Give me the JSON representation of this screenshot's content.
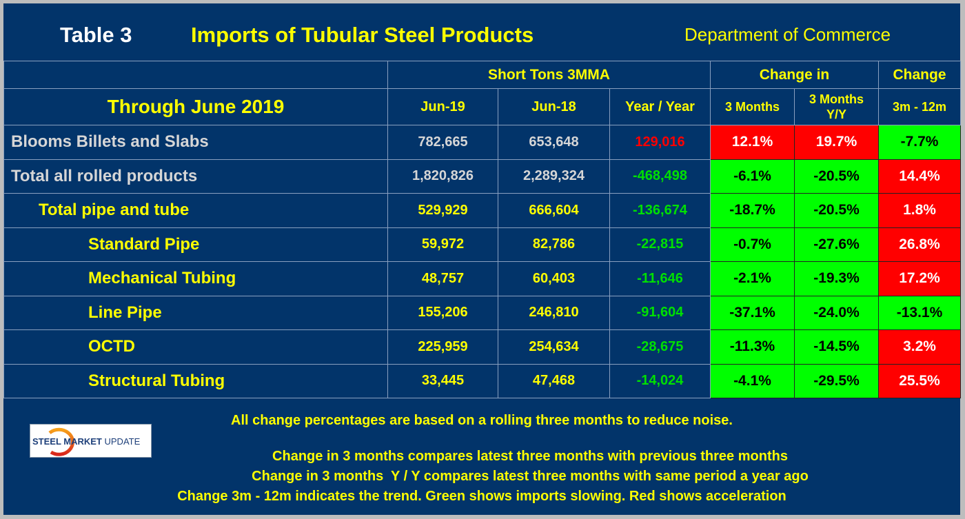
{
  "header": {
    "table_number": "Table 3",
    "title": "Imports of Tubular Steel Products",
    "source": "Department of Commerce"
  },
  "columns": {
    "period": "Through June 2019",
    "group1": "Short Tons 3MMA",
    "group2": "Change in",
    "group3": "Change",
    "c1": "Jun-19",
    "c2": "Jun-18",
    "c3": "Year / Year",
    "c4": "3 Months",
    "c5a": "3 Months",
    "c5b": "Y/Y",
    "c6": "3m - 12m"
  },
  "rows": [
    {
      "label": "Blooms Billets and Slabs",
      "jun19": "782,665",
      "jun18": "653,648",
      "yoy": "129,016",
      "m3": "12.1%",
      "m3yy": "19.7%",
      "trend": "-7.7%"
    },
    {
      "label": "Total all rolled products",
      "jun19": "1,820,826",
      "jun18": "2,289,324",
      "yoy": "-468,498",
      "m3": "-6.1%",
      "m3yy": "-20.5%",
      "trend": "14.4%"
    },
    {
      "label": "Total pipe and tube",
      "jun19": "529,929",
      "jun18": "666,604",
      "yoy": "-136,674",
      "m3": "-18.7%",
      "m3yy": "-20.5%",
      "trend": "1.8%"
    },
    {
      "label": "Standard Pipe",
      "jun19": "59,972",
      "jun18": "82,786",
      "yoy": "-22,815",
      "m3": "-0.7%",
      "m3yy": "-27.6%",
      "trend": "26.8%"
    },
    {
      "label": "Mechanical Tubing",
      "jun19": "48,757",
      "jun18": "60,403",
      "yoy": "-11,646",
      "m3": "-2.1%",
      "m3yy": "-19.3%",
      "trend": "17.2%"
    },
    {
      "label": "Line Pipe",
      "jun19": "155,206",
      "jun18": "246,810",
      "yoy": "-91,604",
      "m3": "-37.1%",
      "m3yy": "-24.0%",
      "trend": "-13.1%"
    },
    {
      "label": "OCTD",
      "jun19": "225,959",
      "jun18": "254,634",
      "yoy": "-28,675",
      "m3": "-11.3%",
      "m3yy": "-14.5%",
      "trend": "3.2%"
    },
    {
      "label": "Structural Tubing",
      "jun19": "33,445",
      "jun18": "47,468",
      "yoy": "-14,024",
      "m3": "-4.1%",
      "m3yy": "-29.5%",
      "trend": "25.5%"
    }
  ],
  "notes": [
    "All change percentages are based on a rolling three months to reduce noise.",
    "Change in 3 months compares latest three months with previous three months",
    "Change in 3 months  Y / Y compares latest three months with same period a year ago",
    "Change 3m - 12m indicates the trend. Green shows imports slowing. Red shows acceleration"
  ],
  "logo": {
    "text1": "STEEL",
    "text2": "MARKET",
    "text3": "UPDATE"
  },
  "colors": {
    "background": "#02346a",
    "accent": "#ffff00",
    "red": "#ff0000",
    "green": "#00ff00"
  },
  "chart_data": {
    "type": "table",
    "title": "Imports of Tubular Steel Products",
    "columns": [
      "Jun-19",
      "Jun-18",
      "Year / Year",
      "3 Months",
      "3 Months Y/Y",
      "3m - 12m"
    ],
    "rows": [
      "Blooms Billets and Slabs",
      "Total all rolled products",
      "Total pipe and tube",
      "Standard Pipe",
      "Mechanical Tubing",
      "Line Pipe",
      "OCTD",
      "Structural Tubing"
    ],
    "values": [
      [
        782665,
        653648,
        129016,
        12.1,
        19.7,
        -7.7
      ],
      [
        1820826,
        2289324,
        -468498,
        -6.1,
        -20.5,
        14.4
      ],
      [
        529929,
        666604,
        -136674,
        -18.7,
        -20.5,
        1.8
      ],
      [
        59972,
        82786,
        -22815,
        -0.7,
        -27.6,
        26.8
      ],
      [
        48757,
        60403,
        -11646,
        -2.1,
        -19.3,
        17.2
      ],
      [
        155206,
        246810,
        -91604,
        -37.1,
        -24.0,
        -13.1
      ],
      [
        225959,
        254634,
        -28675,
        -11.3,
        -14.5,
        3.2
      ],
      [
        33445,
        47468,
        -14024,
        -4.1,
        -29.5,
        25.5
      ]
    ]
  }
}
